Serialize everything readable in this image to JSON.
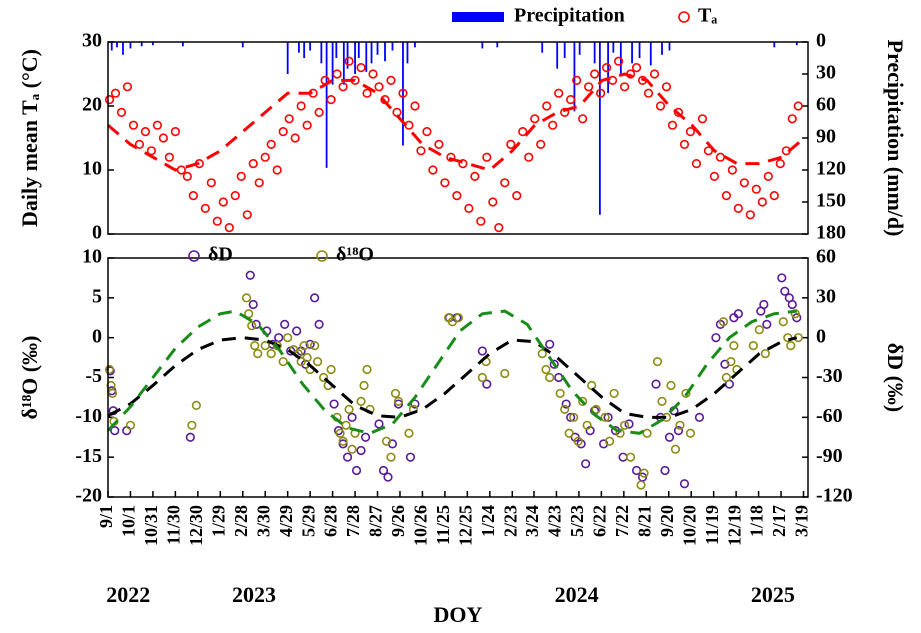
{
  "chart_data": [
    {
      "type": "scatter",
      "ylabel": "Daily mean Tₐ (°C)",
      "y2label": "Precipitation (mm/d)",
      "xlim": [
        0,
        935
      ],
      "ylim": [
        0,
        30
      ],
      "yticks": [
        0,
        10,
        20,
        30
      ],
      "y2lim": [
        0,
        180
      ],
      "y2_reversed": true,
      "y2ticks": [
        0,
        30,
        60,
        90,
        120,
        150,
        180
      ],
      "series": [
        {
          "name": "Precipitation",
          "type": "bar",
          "axis": "y2",
          "color": "#0000ff",
          "x": [
            5,
            12,
            20,
            30,
            45,
            60,
            100,
            180,
            240,
            255,
            262,
            270,
            285,
            292,
            300,
            305,
            315,
            320,
            330,
            335,
            345,
            352,
            360,
            370,
            380,
            394,
            400,
            410,
            500,
            520,
            580,
            600,
            610,
            623,
            630,
            650,
            657,
            668,
            675,
            685,
            700,
            710,
            725,
            740,
            750,
            890,
            920
          ],
          "values": [
            8,
            5,
            12,
            6,
            4,
            3,
            4,
            5,
            30,
            10,
            15,
            8,
            20,
            118,
            40,
            15,
            40,
            25,
            30,
            15,
            28,
            20,
            12,
            18,
            8,
            97,
            20,
            5,
            6,
            5,
            10,
            25,
            15,
            65,
            12,
            20,
            162,
            48,
            10,
            30,
            20,
            15,
            22,
            12,
            8,
            5,
            3
          ]
        },
        {
          "name": "Tₐ",
          "type": "scatter",
          "color": "#ff0000",
          "x": [
            2,
            10,
            18,
            26,
            34,
            42,
            50,
            58,
            66,
            74,
            82,
            90,
            98,
            106,
            114,
            122,
            130,
            138,
            146,
            154,
            162,
            170,
            178,
            186,
            194,
            202,
            210,
            218,
            226,
            234,
            242,
            250,
            258,
            266,
            274,
            282,
            290,
            298,
            306,
            314,
            322,
            330,
            338,
            346,
            354,
            362,
            370,
            378,
            386,
            394,
            402,
            410,
            418,
            426,
            434,
            442,
            450,
            458,
            466,
            474,
            482,
            490,
            498,
            506,
            514,
            522,
            530,
            538,
            546,
            554,
            562,
            570,
            578,
            586,
            594,
            602,
            610,
            618,
            626,
            634,
            642,
            650,
            658,
            666,
            674,
            682,
            690,
            698,
            706,
            714,
            722,
            730,
            738,
            746,
            754,
            762,
            770,
            778,
            786,
            794,
            802,
            810,
            818,
            826,
            834,
            842,
            850,
            858,
            866,
            874,
            882,
            890,
            898,
            906,
            914,
            922
          ],
          "values": [
            21,
            22,
            19,
            23,
            17,
            14,
            16,
            13,
            17,
            15,
            12,
            16,
            10,
            9,
            6,
            11,
            4,
            8,
            2,
            5,
            1,
            6,
            9,
            3,
            11,
            8,
            12,
            14,
            10,
            16,
            18,
            15,
            20,
            17,
            22,
            19,
            24,
            21,
            25,
            23,
            27,
            24,
            26,
            22,
            25,
            23,
            21,
            24,
            19,
            22,
            17,
            20,
            13,
            16,
            10,
            14,
            8,
            12,
            6,
            11,
            4,
            9,
            2,
            12,
            5,
            1,
            8,
            14,
            6,
            16,
            12,
            18,
            14,
            20,
            17,
            22,
            19,
            21,
            24,
            18,
            23,
            25,
            22,
            26,
            24,
            27,
            23,
            25,
            26,
            24,
            22,
            25,
            20,
            23,
            17,
            19,
            14,
            16,
            11,
            18,
            13,
            9,
            12,
            6,
            10,
            4,
            8,
            3,
            7,
            5,
            9,
            6,
            11,
            13,
            18,
            20
          ]
        },
        {
          "type": "line",
          "color": "#ff0000",
          "x": [
            0,
            30,
            60,
            90,
            120,
            150,
            180,
            210,
            240,
            270,
            300,
            330,
            360,
            390,
            420,
            450,
            480,
            510,
            540,
            570,
            600,
            630,
            660,
            690,
            720,
            750,
            780,
            810,
            840,
            870,
            900,
            930
          ],
          "values": [
            17,
            14,
            12,
            10,
            11,
            13,
            16,
            19,
            22,
            22,
            24,
            24,
            22,
            18,
            14,
            12,
            11,
            10,
            13,
            17,
            19,
            20,
            24,
            25,
            24,
            20,
            17,
            13,
            11,
            11,
            12,
            15
          ]
        }
      ]
    },
    {
      "type": "scatter",
      "ylabel": "δ¹⁸O (‰)",
      "y2label": "δD (‰)",
      "xlabel": "DOY",
      "xlim": [
        0,
        935
      ],
      "ylim": [
        -20,
        10
      ],
      "yticks": [
        -20,
        -15,
        -10,
        -5,
        0,
        5,
        10
      ],
      "y2lim": [
        -120,
        60
      ],
      "y2ticks": [
        -120,
        -90,
        -60,
        -30,
        0,
        30,
        60
      ],
      "xticks": [
        {
          "value": 0,
          "label": "9/1"
        },
        {
          "value": 30,
          "label": "10/1"
        },
        {
          "value": 60,
          "label": "10/31"
        },
        {
          "value": 90,
          "label": "11/30"
        },
        {
          "value": 120,
          "label": "12/30"
        },
        {
          "value": 150,
          "label": "1/29"
        },
        {
          "value": 180,
          "label": "2/28"
        },
        {
          "value": 210,
          "label": "3/30"
        },
        {
          "value": 240,
          "label": "4/29"
        },
        {
          "value": 270,
          "label": "5/29"
        },
        {
          "value": 300,
          "label": "6/28"
        },
        {
          "value": 330,
          "label": "7/28"
        },
        {
          "value": 360,
          "label": "8/27"
        },
        {
          "value": 390,
          "label": "9/26"
        },
        {
          "value": 420,
          "label": "10/26"
        },
        {
          "value": 450,
          "label": "11/25"
        },
        {
          "value": 480,
          "label": "12/25"
        },
        {
          "value": 510,
          "label": "1/24"
        },
        {
          "value": 540,
          "label": "2/23"
        },
        {
          "value": 569,
          "label": "3/24"
        },
        {
          "value": 599,
          "label": "4/23"
        },
        {
          "value": 629,
          "label": "5/23"
        },
        {
          "value": 659,
          "label": "6/22"
        },
        {
          "value": 689,
          "label": "7/22"
        },
        {
          "value": 719,
          "label": "8/21"
        },
        {
          "value": 749,
          "label": "9/20"
        },
        {
          "value": 779,
          "label": "10/20"
        },
        {
          "value": 809,
          "label": "11/19"
        },
        {
          "value": 839,
          "label": "12/19"
        },
        {
          "value": 869,
          "label": "1/18"
        },
        {
          "value": 899,
          "label": "2/17"
        },
        {
          "value": 929,
          "label": "3/19"
        }
      ],
      "year_ticks": [
        {
          "value": 27,
          "label": "2022"
        },
        {
          "value": 195,
          "label": "2023"
        },
        {
          "value": 626,
          "label": "2024"
        },
        {
          "value": 888,
          "label": "2025"
        }
      ],
      "series": [
        {
          "name": "δD",
          "type": "scatter",
          "axis": "y2",
          "color": "#5a1a9a",
          "x": [
            3,
            5,
            7,
            9,
            25,
            110,
            190,
            194,
            198,
            212,
            220,
            228,
            236,
            244,
            252,
            258,
            264,
            270,
            276,
            282,
            302,
            308,
            314,
            320,
            326,
            332,
            338,
            344,
            362,
            368,
            374,
            380,
            388,
            404,
            410,
            456,
            466,
            500,
            506,
            590,
            596,
            602,
            612,
            618,
            624,
            632,
            638,
            644,
            650,
            662,
            668,
            678,
            688,
            696,
            706,
            714,
            732,
            738,
            744,
            750,
            756,
            762,
            770,
            790,
            812,
            818,
            824,
            830,
            836,
            842,
            872,
            876,
            880,
            900,
            904,
            910,
            914,
            920
          ],
          "values": [
            -25,
            -40,
            -55,
            -70,
            -70,
            -75,
            47,
            25,
            10,
            5,
            -5,
            0,
            10,
            -10,
            5,
            -10,
            -20,
            -5,
            30,
            10,
            -50,
            -70,
            -80,
            -90,
            -60,
            -100,
            -85,
            -75,
            -65,
            -100,
            -105,
            -80,
            -50,
            -90,
            -50,
            15,
            15,
            -10,
            -35,
            -5,
            -20,
            -30,
            -50,
            -60,
            -75,
            -80,
            -95,
            -70,
            -55,
            -80,
            -60,
            -70,
            -90,
            -65,
            -100,
            -105,
            -35,
            -60,
            -100,
            -75,
            -55,
            -70,
            -110,
            -60,
            0,
            10,
            -20,
            -35,
            15,
            18,
            20,
            25,
            10,
            45,
            35,
            30,
            25,
            15
          ]
        },
        {
          "name": "δ¹⁸O",
          "type": "scatter",
          "color": "#8c8c14",
          "x": [
            2,
            4,
            6,
            8,
            30,
            112,
            118,
            185,
            188,
            192,
            196,
            200,
            210,
            218,
            226,
            234,
            240,
            248,
            254,
            258,
            262,
            266,
            270,
            276,
            280,
            288,
            294,
            298,
            306,
            310,
            314,
            318,
            322,
            326,
            330,
            338,
            342,
            346,
            350,
            372,
            378,
            384,
            388,
            402,
            408,
            455,
            460,
            468,
            500,
            505,
            530,
            580,
            585,
            590,
            604,
            610,
            616,
            622,
            628,
            634,
            640,
            646,
            652,
            664,
            670,
            676,
            684,
            690,
            698,
            712,
            716,
            720,
            734,
            740,
            746,
            752,
            758,
            764,
            772,
            778,
            822,
            826,
            832,
            836,
            840,
            862,
            870,
            878,
            902,
            908,
            912,
            918,
            922
          ],
          "values": [
            -4,
            -6,
            -7,
            -10.5,
            -11,
            -11,
            -8.5,
            5,
            3,
            1.5,
            -1,
            -2,
            -1,
            -2,
            -1,
            -3,
            0,
            -1.5,
            -2,
            -3,
            -1,
            -2.5,
            -4,
            -1,
            -3,
            -5,
            -6,
            -4,
            -10,
            -12,
            -13,
            -11,
            -9,
            -14,
            -12,
            -8,
            -6,
            -4,
            -9,
            -13,
            -15,
            -7,
            -8,
            -12,
            -9,
            2.5,
            2,
            2.5,
            -5,
            -3,
            -4.5,
            -2,
            -4,
            -5,
            -7,
            -9,
            -12,
            -10,
            -13,
            -8,
            -11,
            -6,
            -9,
            -10,
            -13,
            -7,
            -12,
            -11,
            -15,
            -18.5,
            -17,
            -12,
            -3,
            -8,
            -10,
            -6,
            -14,
            -11,
            -7,
            -12,
            2,
            -5,
            -3,
            -1,
            -4,
            -1,
            1,
            -2,
            2,
            0,
            -1,
            3,
            0
          ]
        },
        {
          "type": "line",
          "color": "#000000",
          "x": [
            0,
            30,
            60,
            90,
            120,
            150,
            180,
            210,
            240,
            270,
            300,
            330,
            360,
            390,
            420,
            450,
            480,
            510,
            540,
            570,
            600,
            630,
            660,
            690,
            720,
            750,
            780,
            810,
            840,
            870,
            900,
            920
          ],
          "values": [
            -9.8,
            -8.3,
            -6,
            -3.5,
            -1.5,
            -0.3,
            0,
            -0.3,
            -1.5,
            -3.5,
            -6,
            -8.5,
            -9.8,
            -10,
            -9,
            -7,
            -4.5,
            -2,
            -0.3,
            -0.5,
            -2.5,
            -5,
            -7.5,
            -9.5,
            -10,
            -10,
            -9,
            -7,
            -4.5,
            -2,
            -0.5,
            0
          ]
        },
        {
          "type": "line",
          "axis": "y2",
          "color": "#1a8c1a",
          "x": [
            0,
            30,
            60,
            90,
            120,
            150,
            170,
            200,
            230,
            260,
            290,
            320,
            350,
            380,
            410,
            440,
            470,
            500,
            530,
            560,
            590,
            620,
            650,
            680,
            710,
            740,
            770,
            800,
            830,
            860,
            890,
            920
          ],
          "values": [
            -70,
            -52,
            -30,
            -8,
            8,
            18,
            20,
            10,
            -10,
            -35,
            -55,
            -68,
            -72,
            -65,
            -45,
            -20,
            5,
            18,
            20,
            10,
            -15,
            -40,
            -58,
            -70,
            -72,
            -62,
            -45,
            -20,
            0,
            12,
            18,
            20
          ]
        }
      ]
    }
  ]
}
